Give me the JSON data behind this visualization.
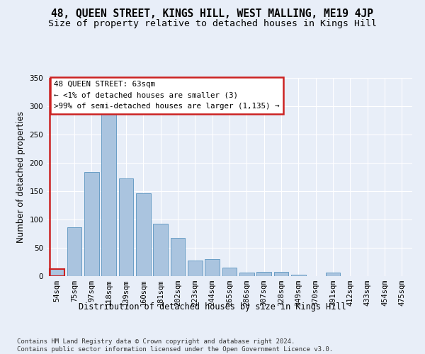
{
  "title": "48, QUEEN STREET, KINGS HILL, WEST MALLING, ME19 4JP",
  "subtitle": "Size of property relative to detached houses in Kings Hill",
  "xlabel": "Distribution of detached houses by size in Kings Hill",
  "ylabel": "Number of detached properties",
  "categories": [
    "54sqm",
    "75sqm",
    "97sqm",
    "118sqm",
    "139sqm",
    "160sqm",
    "181sqm",
    "202sqm",
    "223sqm",
    "244sqm",
    "265sqm",
    "286sqm",
    "307sqm",
    "328sqm",
    "349sqm",
    "370sqm",
    "391sqm",
    "412sqm",
    "433sqm",
    "454sqm",
    "475sqm"
  ],
  "values": [
    13,
    86,
    184,
    289,
    172,
    146,
    93,
    68,
    27,
    30,
    15,
    6,
    8,
    8,
    3,
    0,
    6,
    0,
    0,
    0,
    0
  ],
  "bar_color": "#aac4df",
  "bar_edge_color": "#6a9ec5",
  "highlight_color": "#cc2222",
  "annotation_text": "48 QUEEN STREET: 63sqm\n← <1% of detached houses are smaller (3)\n>99% of semi-detached houses are larger (1,135) →",
  "annotation_box_color": "#ffffff",
  "annotation_box_edge_color": "#cc2222",
  "footnote": "Contains HM Land Registry data © Crown copyright and database right 2024.\nContains public sector information licensed under the Open Government Licence v3.0.",
  "ylim": [
    0,
    350
  ],
  "yticks": [
    0,
    50,
    100,
    150,
    200,
    250,
    300,
    350
  ],
  "bg_color": "#e8eef8",
  "plot_bg_color": "#e8eef8",
  "title_fontsize": 10.5,
  "subtitle_fontsize": 9.5,
  "footnote_fontsize": 6.5,
  "axis_label_fontsize": 8.5,
  "tick_fontsize": 7.5
}
